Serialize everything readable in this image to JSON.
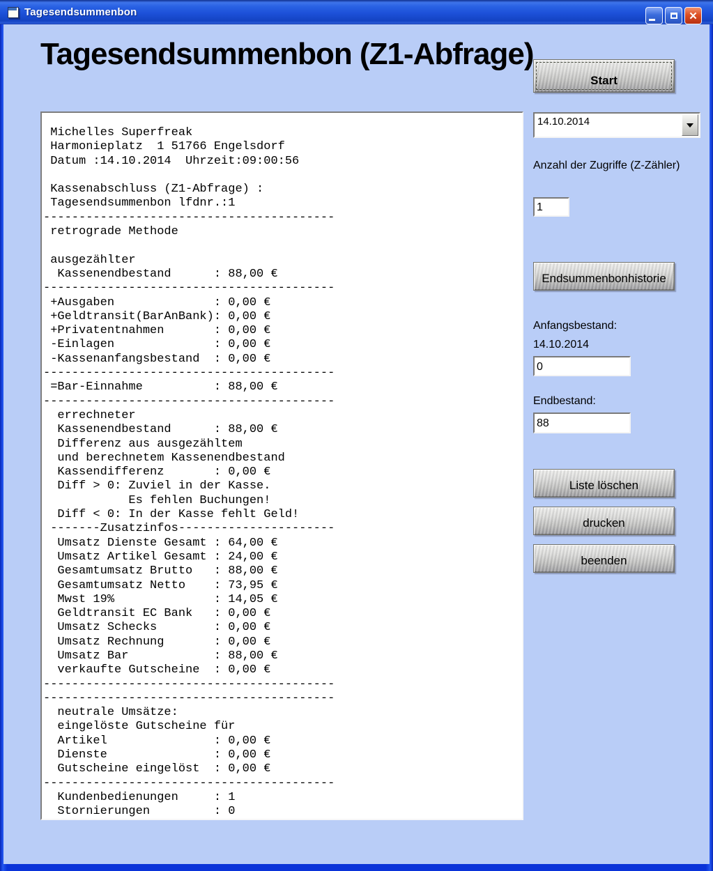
{
  "window": {
    "title": "Tagesendsummenbon"
  },
  "header": {
    "title": "Tagesendsummenbon (Z1-Abfrage)"
  },
  "panel": {
    "start_label": "Start",
    "date_combo_value": "14.10.2014",
    "zugriffe_label": "Anzahl der Zugriffe (Z-Zähler)",
    "zugriffe_value": "1",
    "history_label": "Endsummenbonhistorie",
    "anfangsbestand_label": "Anfangsbestand:",
    "anfangsbestand_date": "14.10.2014",
    "anfangsbestand_value": "0",
    "endbestand_label": "Endbestand:",
    "endbestand_value": "88",
    "liste_loeschen_label": "Liste löschen",
    "drucken_label": "drucken",
    "beenden_label": "beenden"
  },
  "receipt": {
    "lines": [
      " Michelles Superfreak",
      " Harmonieplatz  1 51766 Engelsdorf",
      " Datum :14.10.2014  Uhrzeit:09:00:56",
      "",
      " Kassenabschluss (Z1-Abfrage) :",
      " Tagesendsummenbon lfdnr.:1",
      "-----------------------------------------",
      " retrograde Methode",
      "",
      " ausgezählter",
      "  Kassenendbestand      : 88,00 €",
      "-----------------------------------------",
      " +Ausgaben              : 0,00 €",
      " +Geldtransit(BarAnBank): 0,00 €",
      " +Privatentnahmen       : 0,00 €",
      " -Einlagen              : 0,00 €",
      " -Kassenanfangsbestand  : 0,00 €",
      "-----------------------------------------",
      " =Bar-Einnahme          : 88,00 €",
      "-----------------------------------------",
      "  errechneter",
      "  Kassenendbestand      : 88,00 €",
      "  Differenz aus ausgezähltem",
      "  und berechnetem Kassenendbestand",
      "  Kassendifferenz       : 0,00 €",
      "  Diff > 0: Zuviel in der Kasse.",
      "            Es fehlen Buchungen!",
      "  Diff < 0: In der Kasse fehlt Geld!",
      " -------Zusatzinfos----------------------",
      "  Umsatz Dienste Gesamt : 64,00 €",
      "  Umsatz Artikel Gesamt : 24,00 €",
      "  Gesamtumsatz Brutto   : 88,00 €",
      "  Gesamtumsatz Netto    : 73,95 €",
      "  Mwst 19%              : 14,05 €",
      "  Geldtransit EC Bank   : 0,00 €",
      "  Umsatz Schecks        : 0,00 €",
      "  Umsatz Rechnung       : 0,00 €",
      "  Umsatz Bar            : 88,00 €",
      "  verkaufte Gutscheine  : 0,00 €",
      "-----------------------------------------",
      "-----------------------------------------",
      "  neutrale Umsätze:",
      "  eingelöste Gutscheine für",
      "  Artikel               : 0,00 €",
      "  Dienste               : 0,00 €",
      "  Gutscheine eingelöst  : 0,00 €",
      "-----------------------------------------",
      "  Kundenbedienungen     : 1",
      "  Stornierungen         : 0"
    ]
  },
  "colors": {
    "titlebar_blue": "#1c50d8",
    "window_border_blue": "#0a33d9",
    "client_background": "#b9cdf7",
    "close_button_red": "#dd4f24",
    "button_metal_light": "#efefed",
    "button_metal_dark": "#97979b"
  }
}
